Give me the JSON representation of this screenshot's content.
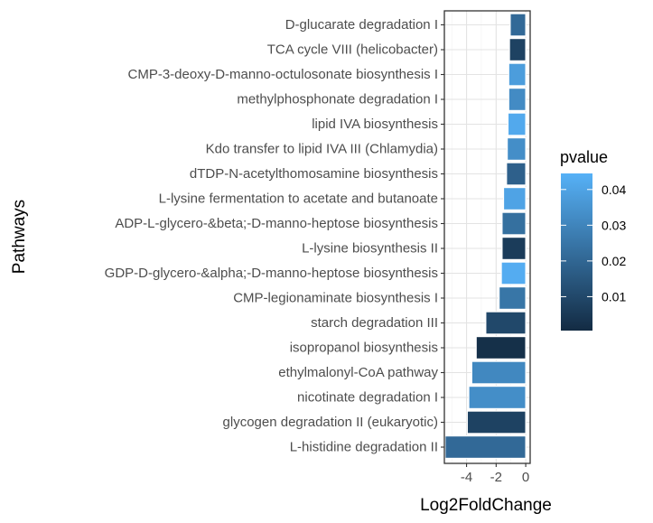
{
  "chart_data": {
    "type": "bar",
    "orientation": "horizontal",
    "xlabel": "Log2FoldChange",
    "ylabel": "Pathways",
    "xlim": [
      -5.5,
      0.3
    ],
    "xticks": [
      -4,
      -2,
      0
    ],
    "xtick_labels": [
      "-4",
      "-2",
      "0"
    ],
    "grid": true,
    "categories": [
      "D-glucarate degradation I",
      "TCA cycle VIII (helicobacter)",
      "CMP-3-deoxy-D-manno-octulosonate biosynthesis I",
      "methylphosphonate degradation I",
      "lipid IVA biosynthesis",
      "Kdo transfer to lipid IVA III (Chlamydia)",
      "dTDP-N-acetylthomosamine biosynthesis",
      "L-lysine fermentation to acetate and butanoate",
      "ADP-L-glycero-&beta;-D-manno-heptose biosynthesis",
      "L-lysine biosynthesis II",
      "GDP-D-glycero-&alpha;-D-manno-heptose biosynthesis",
      "CMP-legionaminate biosynthesis I",
      "starch degradation III",
      "isopropanol biosynthesis",
      "ethylmalonyl-CoA pathway",
      "nicotinate degradation I",
      "glycogen degradation II (eukaryotic)",
      "L-histidine degradation II"
    ],
    "values": [
      -1.05,
      -1.1,
      -1.15,
      -1.15,
      -1.2,
      -1.25,
      -1.3,
      -1.5,
      -1.6,
      -1.6,
      -1.65,
      -1.8,
      -2.7,
      -3.35,
      -3.65,
      -3.85,
      -3.95,
      -5.45
    ],
    "pvalue": [
      0.021,
      0.008,
      0.038,
      0.032,
      0.042,
      0.033,
      0.018,
      0.04,
      0.023,
      0.006,
      0.043,
      0.025,
      0.01,
      0.002,
      0.031,
      0.033,
      0.008,
      0.021
    ],
    "legend": {
      "title": "pvalue",
      "placement": "right",
      "type": "colorbar",
      "ticks": [
        0.04,
        0.03,
        0.02,
        0.01
      ],
      "tick_labels": [
        "0.04",
        "0.03",
        "0.02",
        "0.01"
      ],
      "range": [
        0.0005,
        0.0445
      ],
      "color_low": "#132B43",
      "color_high": "#56B1F7"
    }
  }
}
